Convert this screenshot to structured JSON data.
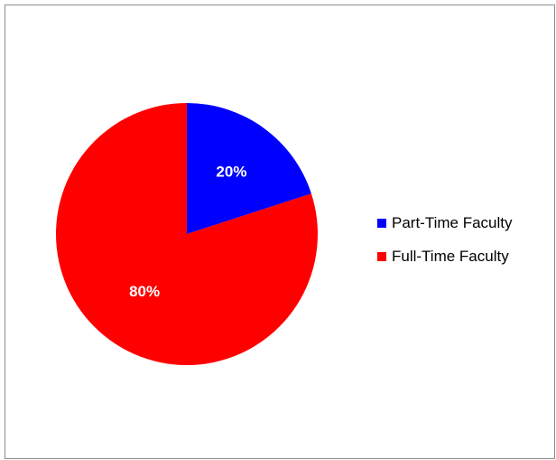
{
  "chart_data": {
    "type": "pie",
    "categories": [
      "Part-Time Faculty",
      "Full-Time Faculty"
    ],
    "values": [
      20,
      80
    ],
    "labels": [
      "20%",
      "80%"
    ],
    "colors": [
      "#0000ff",
      "#ff0000"
    ],
    "legend_position": "right"
  }
}
